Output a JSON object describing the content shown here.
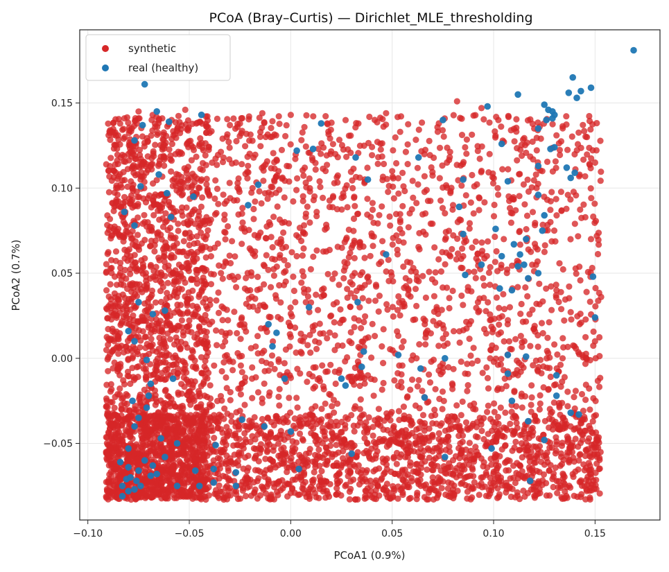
{
  "chart_data": {
    "type": "scatter",
    "title": "PCoA (Bray–Curtis) — Dirichlet_MLE_thresholding",
    "xlabel": "PCoA1 (0.9%)",
    "ylabel": "PCoA2 (0.7%)",
    "xlim": [
      -0.104,
      0.182
    ],
    "ylim": [
      -0.095,
      0.193
    ],
    "xticks": [
      -0.1,
      -0.05,
      0.0,
      0.05,
      0.1,
      0.15
    ],
    "xtick_labels": [
      "−0.10",
      "−0.05",
      "0.00",
      "0.05",
      "0.10",
      "0.15"
    ],
    "yticks": [
      -0.05,
      0.0,
      0.05,
      0.1,
      0.15
    ],
    "ytick_labels": [
      "−0.05",
      "0.00",
      "0.05",
      "0.10",
      "0.15"
    ],
    "grid": true,
    "legend_position": "top-left",
    "series": [
      {
        "name": "synthetic",
        "color": "#d62728",
        "note_range": {
          "x": [
            -0.091,
            0.153
          ],
          "y": [
            -0.083,
            0.151
          ]
        },
        "points": [
          [
            -0.089,
            0.134
          ],
          [
            -0.087,
            0.11
          ],
          [
            -0.086,
            0.093
          ],
          [
            -0.085,
            0.076
          ],
          [
            -0.086,
            0.025
          ],
          [
            -0.089,
            -0.039
          ],
          [
            -0.086,
            -0.065
          ],
          [
            -0.084,
            -0.07
          ],
          [
            -0.082,
            0.141
          ],
          [
            -0.08,
            0.12
          ],
          [
            -0.079,
            0.06
          ],
          [
            -0.078,
            0.0
          ],
          [
            -0.077,
            -0.03
          ],
          [
            -0.075,
            0.145
          ],
          [
            -0.074,
            0.105
          ],
          [
            -0.072,
            0.08
          ],
          [
            -0.07,
            0.03
          ],
          [
            -0.069,
            -0.01
          ],
          [
            -0.067,
            -0.055
          ],
          [
            -0.065,
            0.14
          ],
          [
            -0.062,
            0.118
          ],
          [
            -0.06,
            0.09
          ],
          [
            -0.058,
            0.05
          ],
          [
            -0.056,
            0.01
          ],
          [
            -0.054,
            -0.05
          ],
          [
            -0.052,
            0.146
          ],
          [
            -0.049,
            0.125
          ],
          [
            -0.045,
            0.1
          ],
          [
            -0.042,
            0.07
          ],
          [
            -0.04,
            0.02
          ],
          [
            -0.038,
            -0.06
          ],
          [
            -0.036,
            -0.081
          ],
          [
            -0.033,
            -0.083
          ],
          [
            -0.03,
            0.137
          ],
          [
            -0.027,
            0.115
          ],
          [
            -0.024,
            0.085
          ],
          [
            -0.02,
            0.04
          ],
          [
            -0.016,
            -0.02
          ],
          [
            -0.014,
            0.144
          ],
          [
            -0.01,
            0.13
          ],
          [
            -0.006,
            0.11
          ],
          [
            -0.003,
            0.08
          ],
          [
            0.0,
            0.143
          ],
          [
            0.003,
            0.06
          ],
          [
            0.006,
            0.01
          ],
          [
            0.01,
            -0.04
          ],
          [
            0.014,
            -0.075
          ],
          [
            0.018,
            0.138
          ],
          [
            0.022,
            0.12
          ],
          [
            0.026,
            0.095
          ],
          [
            0.03,
            0.065
          ],
          [
            0.034,
            0.03
          ],
          [
            0.038,
            -0.01
          ],
          [
            0.042,
            -0.05
          ],
          [
            0.047,
            0.144
          ],
          [
            0.05,
            0.11
          ],
          [
            0.054,
            0.08
          ],
          [
            0.058,
            0.04
          ],
          [
            0.062,
            0.0
          ],
          [
            0.066,
            -0.04
          ],
          [
            0.07,
            -0.07
          ],
          [
            0.073,
            0.138
          ],
          [
            0.077,
            0.115
          ],
          [
            0.08,
            0.09
          ],
          [
            0.082,
            0.151
          ],
          [
            0.085,
            0.06
          ],
          [
            0.088,
            0.02
          ],
          [
            0.091,
            -0.03
          ],
          [
            0.094,
            0.147
          ],
          [
            0.098,
            0.12
          ],
          [
            0.102,
            0.1
          ],
          [
            0.105,
            0.07
          ],
          [
            0.108,
            0.03
          ],
          [
            0.112,
            -0.01
          ],
          [
            0.116,
            -0.05
          ],
          [
            0.12,
            0.135
          ],
          [
            0.124,
            0.11
          ],
          [
            0.128,
            0.08
          ],
          [
            0.131,
            0.04
          ],
          [
            0.134,
            0.0
          ],
          [
            0.138,
            -0.04
          ],
          [
            0.142,
            -0.06
          ],
          [
            0.146,
            0.13
          ],
          [
            0.148,
            0.07
          ],
          [
            0.15,
            0.01
          ],
          [
            0.151,
            -0.058
          ],
          [
            0.153,
            0.036
          ],
          [
            0.147,
            -0.047
          ],
          [
            0.135,
            -0.074
          ],
          [
            0.113,
            -0.063
          ]
        ]
      },
      {
        "name": "real (healthy)",
        "color": "#1f77b4",
        "points": [
          [
            0.169,
            0.181
          ],
          [
            0.139,
            0.165
          ],
          [
            0.148,
            0.159
          ],
          [
            0.143,
            0.157
          ],
          [
            0.137,
            0.156
          ],
          [
            0.141,
            0.153
          ],
          [
            0.112,
            0.155
          ],
          [
            0.125,
            0.149
          ],
          [
            0.097,
            0.148
          ],
          [
            0.127,
            0.146
          ],
          [
            0.129,
            0.145
          ],
          [
            0.13,
            0.143
          ],
          [
            0.129,
            0.141
          ],
          [
            0.126,
            0.14
          ],
          [
            -0.072,
            0.161
          ],
          [
            -0.066,
            0.145
          ],
          [
            -0.06,
            0.139
          ],
          [
            -0.044,
            0.143
          ],
          [
            -0.073,
            0.137
          ],
          [
            0.075,
            0.14
          ],
          [
            0.122,
            0.135
          ],
          [
            0.015,
            0.138
          ],
          [
            0.104,
            0.126
          ],
          [
            0.011,
            0.123
          ],
          [
            0.003,
            0.122
          ],
          [
            0.128,
            0.123
          ],
          [
            0.13,
            0.124
          ],
          [
            -0.077,
            0.128
          ],
          [
            0.032,
            0.118
          ],
          [
            0.063,
            0.118
          ],
          [
            0.122,
            0.113
          ],
          [
            0.136,
            0.112
          ],
          [
            0.14,
            0.109
          ],
          [
            0.138,
            0.106
          ],
          [
            0.038,
            0.105
          ],
          [
            0.107,
            0.104
          ],
          [
            0.085,
            0.105
          ],
          [
            -0.065,
            0.108
          ],
          [
            0.122,
            0.096
          ],
          [
            -0.021,
            0.09
          ],
          [
            -0.074,
            0.101
          ],
          [
            -0.061,
            0.097
          ],
          [
            -0.048,
            0.095
          ],
          [
            -0.016,
            0.102
          ],
          [
            0.083,
            0.089
          ],
          [
            -0.082,
            0.086
          ],
          [
            -0.059,
            0.083
          ],
          [
            0.125,
            0.084
          ],
          [
            0.124,
            0.075
          ],
          [
            0.116,
            0.07
          ],
          [
            0.101,
            0.076
          ],
          [
            0.085,
            0.073
          ],
          [
            0.11,
            0.067
          ],
          [
            -0.077,
            0.078
          ],
          [
            0.047,
            0.061
          ],
          [
            0.104,
            0.06
          ],
          [
            0.113,
            0.061
          ],
          [
            0.094,
            0.055
          ],
          [
            0.115,
            0.055
          ],
          [
            0.112,
            0.054
          ],
          [
            0.122,
            0.05
          ],
          [
            0.086,
            0.049
          ],
          [
            0.149,
            0.048
          ],
          [
            0.103,
            0.041
          ],
          [
            0.109,
            0.04
          ],
          [
            0.117,
            0.047
          ],
          [
            0.033,
            0.033
          ],
          [
            0.009,
            0.03
          ],
          [
            -0.075,
            0.033
          ],
          [
            -0.062,
            0.028
          ],
          [
            -0.068,
            0.026
          ],
          [
            0.15,
            0.024
          ],
          [
            -0.007,
            0.015
          ],
          [
            -0.011,
            0.02
          ],
          [
            -0.08,
            0.016
          ],
          [
            -0.077,
            0.01
          ],
          [
            -0.009,
            0.007
          ],
          [
            0.036,
            0.004
          ],
          [
            0.053,
            0.002
          ],
          [
            0.076,
            0.0
          ],
          [
            0.107,
            0.002
          ],
          [
            0.116,
            0.001
          ],
          [
            -0.071,
            -0.001
          ],
          [
            0.035,
            -0.005
          ],
          [
            0.064,
            -0.006
          ],
          [
            0.107,
            -0.009
          ],
          [
            0.131,
            -0.01
          ],
          [
            -0.003,
            -0.012
          ],
          [
            0.025,
            -0.012
          ],
          [
            -0.058,
            -0.012
          ],
          [
            -0.069,
            -0.015
          ],
          [
            0.027,
            -0.016
          ],
          [
            -0.07,
            -0.022
          ],
          [
            0.066,
            -0.023
          ],
          [
            0.131,
            -0.022
          ],
          [
            -0.078,
            -0.025
          ],
          [
            0.109,
            -0.025
          ],
          [
            -0.071,
            -0.029
          ],
          [
            0.142,
            -0.033
          ],
          [
            0.138,
            -0.032
          ],
          [
            -0.075,
            -0.035
          ],
          [
            -0.024,
            -0.036
          ],
          [
            0.117,
            -0.037
          ],
          [
            -0.077,
            -0.04
          ],
          [
            -0.013,
            -0.04
          ],
          [
            0.0,
            -0.043
          ],
          [
            -0.064,
            -0.047
          ],
          [
            -0.056,
            -0.05
          ],
          [
            0.125,
            -0.048
          ],
          [
            -0.08,
            -0.053
          ],
          [
            -0.037,
            -0.051
          ],
          [
            0.099,
            -0.053
          ],
          [
            -0.062,
            -0.058
          ],
          [
            0.03,
            -0.056
          ],
          [
            0.076,
            -0.058
          ],
          [
            -0.072,
            -0.06
          ],
          [
            -0.084,
            -0.061
          ],
          [
            -0.075,
            -0.066
          ],
          [
            -0.08,
            -0.064
          ],
          [
            -0.081,
            -0.071
          ],
          [
            -0.068,
            -0.063
          ],
          [
            -0.047,
            -0.066
          ],
          [
            -0.038,
            -0.065
          ],
          [
            -0.027,
            -0.067
          ],
          [
            0.004,
            -0.065
          ],
          [
            -0.069,
            -0.069
          ],
          [
            -0.066,
            -0.068
          ],
          [
            -0.079,
            -0.07
          ],
          [
            -0.076,
            -0.072
          ],
          [
            -0.083,
            -0.075
          ],
          [
            -0.08,
            -0.078
          ],
          [
            -0.077,
            -0.077
          ],
          [
            -0.074,
            -0.075
          ],
          [
            -0.056,
            -0.075
          ],
          [
            -0.045,
            -0.075
          ],
          [
            -0.038,
            -0.073
          ],
          [
            -0.027,
            -0.075
          ],
          [
            -0.083,
            -0.081
          ],
          [
            0.118,
            -0.072
          ]
        ]
      }
    ]
  }
}
